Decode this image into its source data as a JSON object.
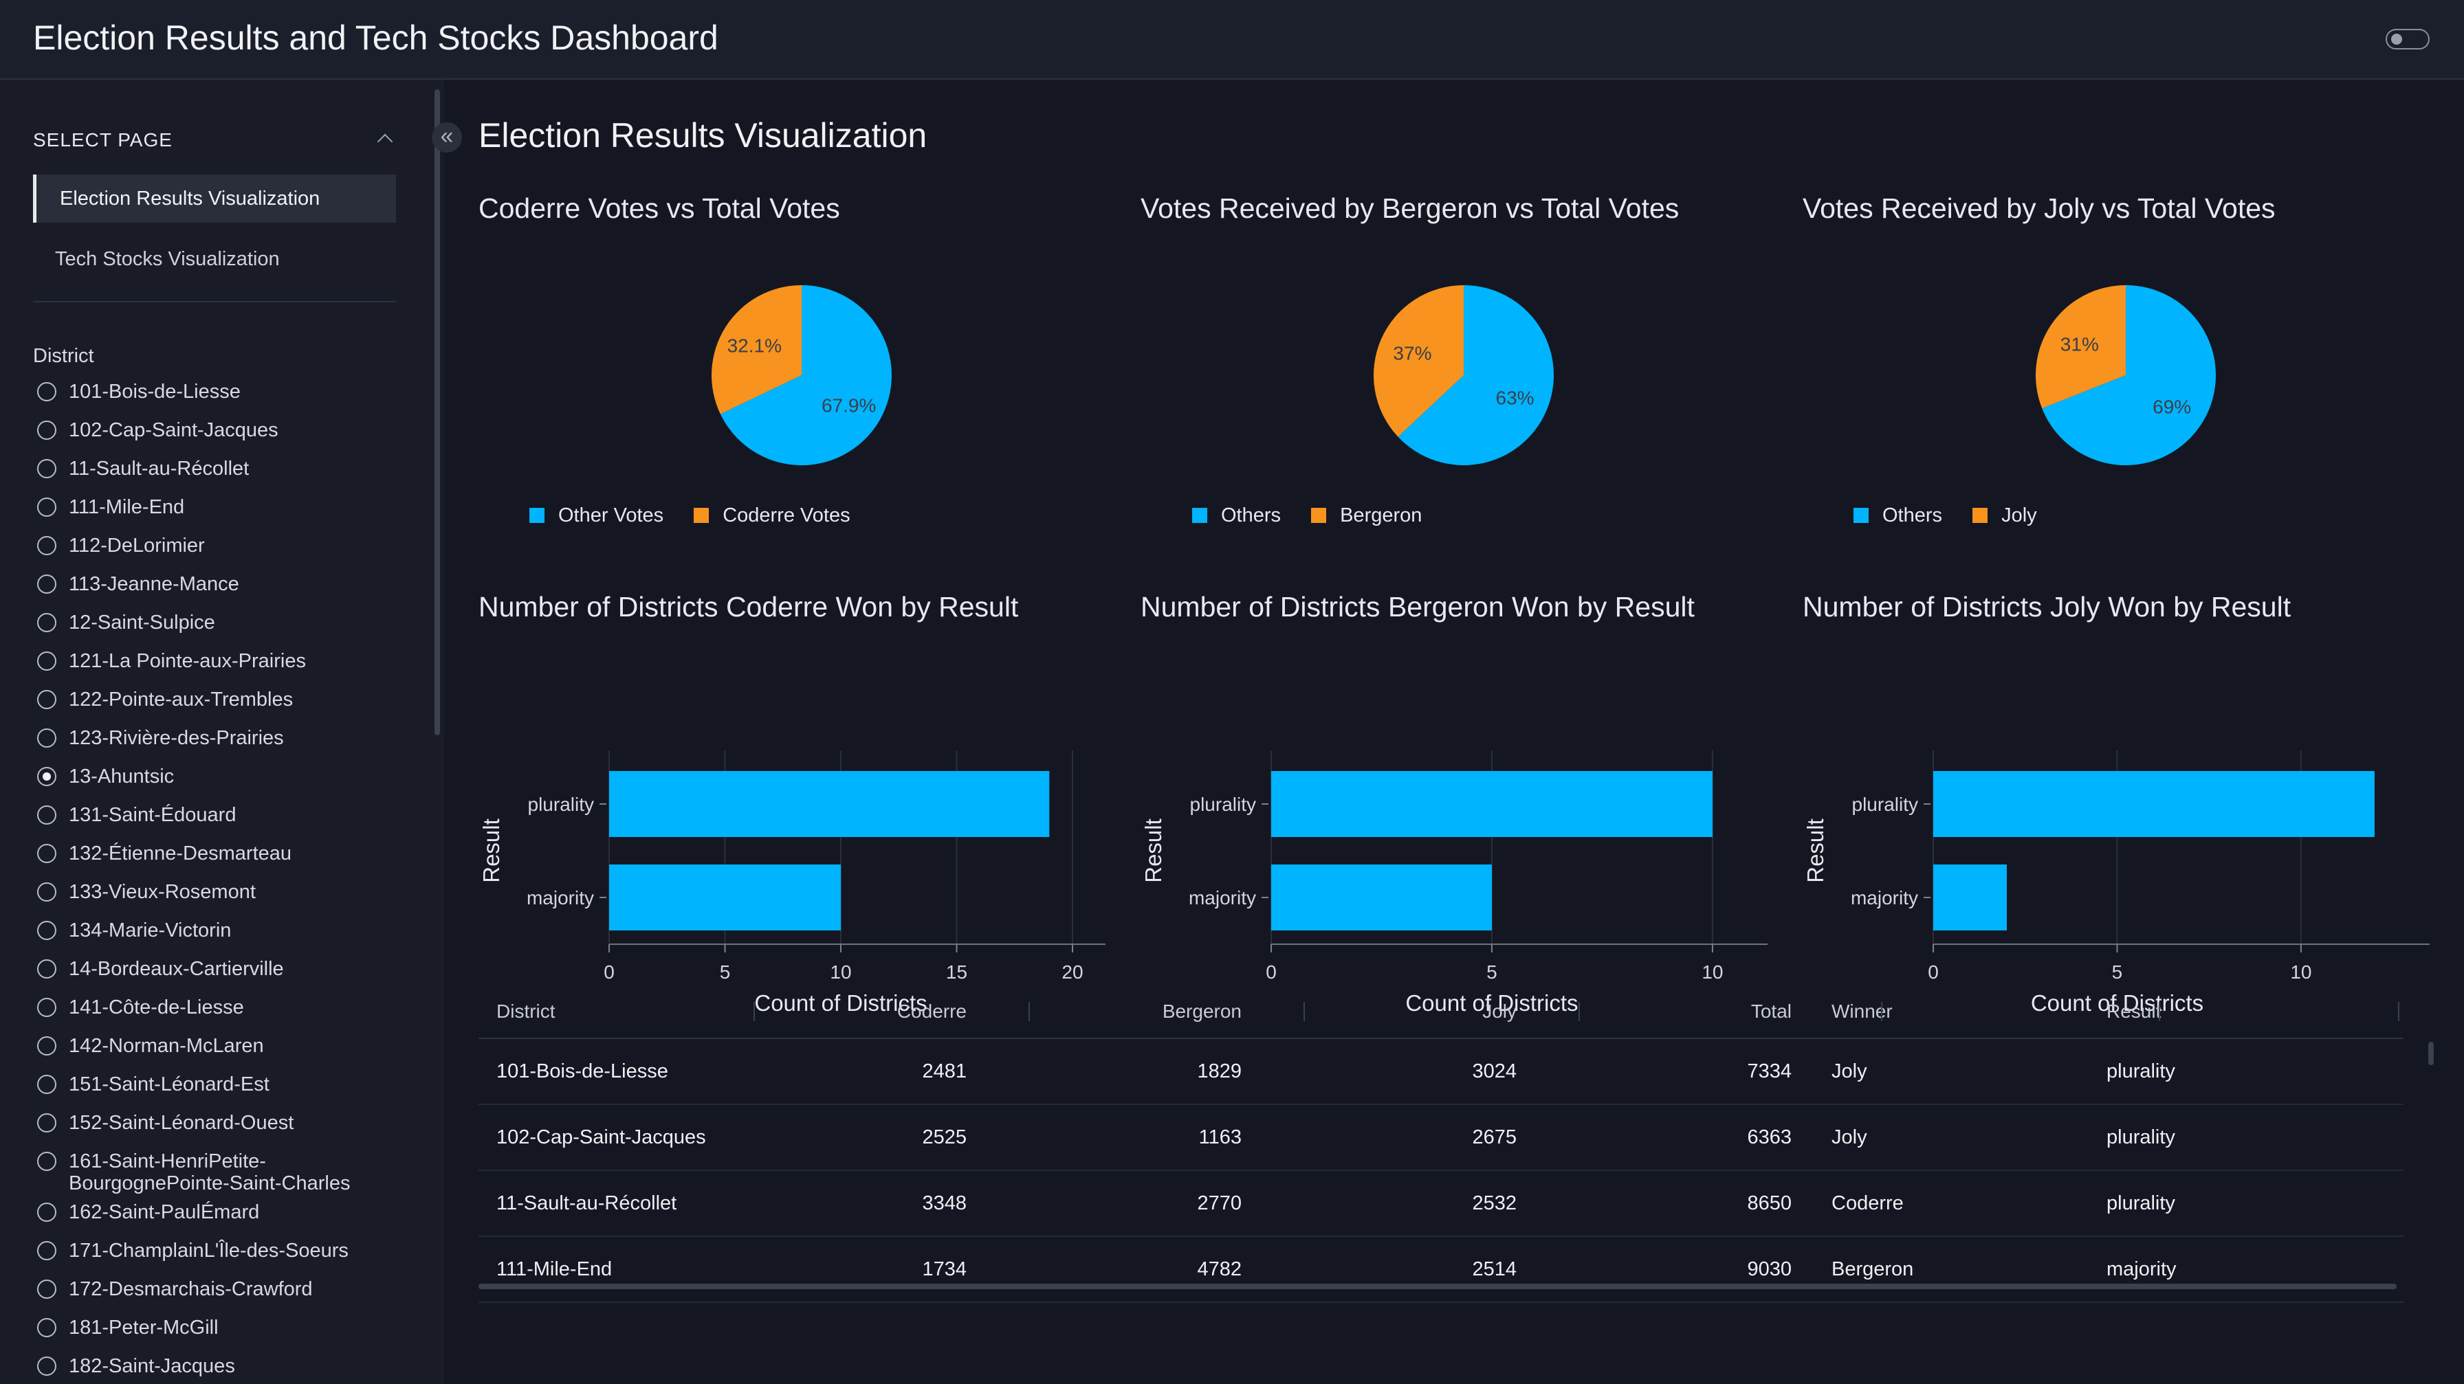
{
  "app": {
    "title": "Election Results and Tech Stocks Dashboard"
  },
  "sidebar": {
    "select_page_label": "SELECT PAGE",
    "pages": [
      {
        "label": "Election Results Visualization",
        "active": true
      },
      {
        "label": "Tech Stocks Visualization",
        "active": false
      }
    ],
    "district_label": "District",
    "districts": [
      "101-Bois-de-Liesse",
      "102-Cap-Saint-Jacques",
      "11-Sault-au-Récollet",
      "111-Mile-End",
      "112-DeLorimier",
      "113-Jeanne-Mance",
      "12-Saint-Sulpice",
      "121-La Pointe-aux-Prairies",
      "122-Pointe-aux-Trembles",
      "123-Rivière-des-Prairies",
      "13-Ahuntsic",
      "131-Saint-Édouard",
      "132-Étienne-Desmarteau",
      "133-Vieux-Rosemont",
      "134-Marie-Victorin",
      "14-Bordeaux-Cartierville",
      "141-Côte-de-Liesse",
      "142-Norman-McLaren",
      "151-Saint-Léonard-Est",
      "152-Saint-Léonard-Ouest",
      "161-Saint-HenriPetite-BourgognePointe-Saint-Charles",
      "162-Saint-PaulÉmard",
      "171-ChamplainL'Île-des-Soeurs",
      "172-Desmarchais-Crawford",
      "181-Peter-McGill",
      "182-Saint-Jacques"
    ],
    "selected_district": "13-Ahuntsic"
  },
  "main": {
    "page_title": "Election Results Visualization"
  },
  "colors": {
    "blue": "#00b4ff",
    "orange": "#f7931e",
    "background": "#141721"
  },
  "chart_data": [
    {
      "type": "pie",
      "title": "Coderre Votes vs Total Votes",
      "labels": [
        "Other Votes",
        "Coderre Votes"
      ],
      "values": [
        67.9,
        32.1
      ],
      "value_labels": [
        "67.9%",
        "32.1%"
      ],
      "colors": [
        "#00b4ff",
        "#f7931e"
      ],
      "legend": "bottom"
    },
    {
      "type": "pie",
      "title": "Votes Received by Bergeron vs Total Votes",
      "labels": [
        "Others",
        "Bergeron"
      ],
      "values": [
        63,
        37
      ],
      "value_labels": [
        "63%",
        "37%"
      ],
      "colors": [
        "#00b4ff",
        "#f7931e"
      ],
      "legend": "bottom"
    },
    {
      "type": "pie",
      "title": "Votes Received by Joly vs Total Votes",
      "labels": [
        "Others",
        "Joly"
      ],
      "values": [
        69,
        31
      ],
      "value_labels": [
        "69%",
        "31%"
      ],
      "colors": [
        "#00b4ff",
        "#f7931e"
      ],
      "legend": "bottom"
    },
    {
      "type": "bar",
      "orientation": "horizontal",
      "title": "Number of Districts Coderre Won by Result",
      "categories": [
        "plurality",
        "majority"
      ],
      "values": [
        19,
        10
      ],
      "xlabel": "Count of Districts",
      "ylabel": "Result",
      "xlim": [
        0,
        20
      ],
      "xticks": [
        0,
        5,
        10,
        15,
        20
      ],
      "grid": true
    },
    {
      "type": "bar",
      "orientation": "horizontal",
      "title": "Number of Districts Bergeron Won by Result",
      "categories": [
        "plurality",
        "majority"
      ],
      "values": [
        10,
        5
      ],
      "xlabel": "Count of Districts",
      "ylabel": "Result",
      "xlim": [
        0,
        10.5
      ],
      "xticks": [
        0,
        5,
        10
      ],
      "grid": true
    },
    {
      "type": "bar",
      "orientation": "horizontal",
      "title": "Number of Districts Joly Won by Result",
      "categories": [
        "plurality",
        "majority"
      ],
      "values": [
        12,
        2
      ],
      "xlabel": "Count of Districts",
      "ylabel": "Result",
      "xlim": [
        0,
        12.6
      ],
      "xticks": [
        0,
        5,
        10
      ],
      "grid": true
    }
  ],
  "table": {
    "columns": [
      "District",
      "Coderre",
      "Bergeron",
      "Joly",
      "Total",
      "Winner",
      "Result"
    ],
    "rows": [
      [
        "101-Bois-de-Liesse",
        "2481",
        "1829",
        "3024",
        "7334",
        "Joly",
        "plurality"
      ],
      [
        "102-Cap-Saint-Jacques",
        "2525",
        "1163",
        "2675",
        "6363",
        "Joly",
        "plurality"
      ],
      [
        "11-Sault-au-Récollet",
        "3348",
        "2770",
        "2532",
        "8650",
        "Coderre",
        "plurality"
      ],
      [
        "111-Mile-End",
        "1734",
        "4782",
        "2514",
        "9030",
        "Bergeron",
        "majority"
      ]
    ]
  }
}
